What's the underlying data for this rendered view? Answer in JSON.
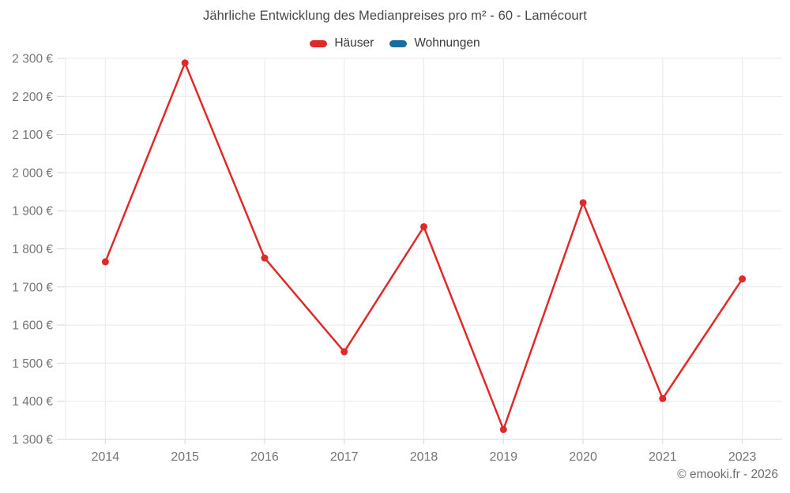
{
  "title": "Jährliche Entwicklung des Medianpreises pro m² - 60 - Lamécourt",
  "footer": {
    "copyright": "© emooki.fr - 2026"
  },
  "chart_data": {
    "type": "line",
    "title": "Jährliche Entwicklung des Medianpreises pro m² - 60 - Lamécourt",
    "categories": [
      "2014",
      "2015",
      "2016",
      "2017",
      "2018",
      "2019",
      "2020",
      "2021",
      "2023"
    ],
    "series": [
      {
        "name": "Häuser",
        "color": "#e02a2a",
        "values": [
          1766,
          2288,
          1776,
          1530,
          1858,
          1326,
          1921,
          1407,
          1721
        ]
      },
      {
        "name": "Wohnungen",
        "color": "#1a6e9e",
        "values": []
      }
    ],
    "xlabel": "",
    "ylabel": "",
    "ylim": [
      1300,
      2300
    ],
    "ytick_step": 100,
    "ytick_labels": [
      "1 300 €",
      "1 400 €",
      "1 500 €",
      "1 600 €",
      "1 700 €",
      "1 800 €",
      "1 900 €",
      "2 000 €",
      "2 100 €",
      "2 200 €",
      "2 300 €"
    ],
    "grid": true,
    "legend_position": "top",
    "styles": {
      "grid_color": "#e9e9e9",
      "axis_color": "#d7d7d7",
      "tick_text_color": "#757575",
      "point_radius": 4.5,
      "line_width": 2.5
    }
  }
}
